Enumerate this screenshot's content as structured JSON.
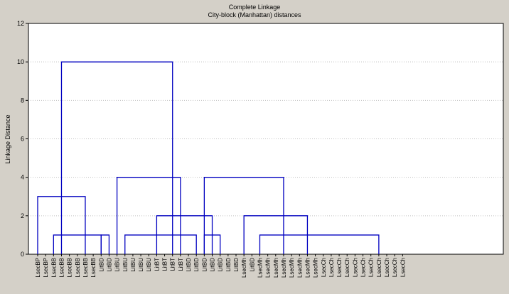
{
  "chart_data": {
    "type": "dendrogram",
    "title": "Complete Linkage",
    "subtitle": "City-block (Manhattan) distances",
    "xlabel": "",
    "ylabel": "Linkage Distance",
    "ylim": [
      0,
      12
    ],
    "yticks": [
      0,
      2,
      4,
      6,
      8,
      10,
      12
    ],
    "grid": true,
    "colors": {
      "tree": "#0000c0",
      "background": "#ffffff",
      "grid": "#c0c0c0"
    },
    "leaves": [
      "LsecBP",
      "LsecBP",
      "LsecBB",
      "LsecBB",
      "LsecBB",
      "LsecBB",
      "LsecBB",
      "LsecBB",
      "LitBD",
      "LitBD",
      "LitBU",
      "LitBU",
      "LitBU",
      "LitBU",
      "LitBU",
      "LitBT",
      "LitBT",
      "LitBT",
      "LitBT",
      "LitBD",
      "LitBD",
      "LitBD",
      "LitBD",
      "LitBD",
      "LitBD",
      "LitBD",
      "LsecMh",
      "LitBD",
      "LsecMh",
      "LsecMh",
      "LsecMh",
      "LsecMh",
      "LsecMh",
      "LsecMh",
      "LsecMh",
      "LsecMh",
      "LsecCh",
      "LsecCh",
      "LsecCh",
      "LsecCh",
      "LsecCh",
      "LsecCh",
      "LsecCh",
      "LsecCh",
      "LsecCh",
      "LsecCh",
      "LsecCh"
    ],
    "merges": [
      {
        "left": 0,
        "right": 6,
        "height": 3
      },
      {
        "left": 2,
        "right": 8,
        "height": 1
      },
      {
        "left": 8,
        "right": 9,
        "height": 1
      },
      {
        "left": 11,
        "right": 20,
        "height": 1
      },
      {
        "left": 21,
        "right": 23,
        "height": 1
      },
      {
        "left": 15,
        "right": 22,
        "height": 2
      },
      {
        "left": 10,
        "right": 18,
        "height": 4
      },
      {
        "left": 26,
        "right": 34,
        "height": 2
      },
      {
        "left": 28,
        "right": 43,
        "height": 1
      },
      {
        "left": 21,
        "right": 31,
        "height": 4
      },
      {
        "left": 3,
        "right": 17,
        "height": 10
      }
    ]
  }
}
